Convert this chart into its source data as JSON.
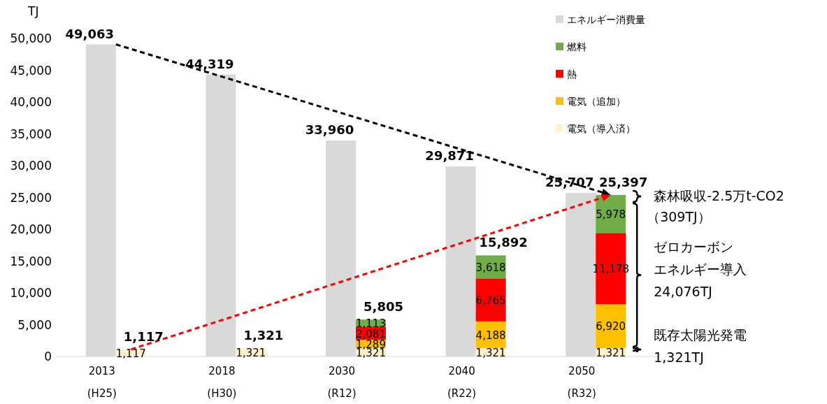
{
  "chart_data": [
    {
      "type": "bar",
      "ylabel": "TJ",
      "categories": [
        "2013\n(H25)",
        "2018\n(H30)",
        "2030\n(R12)",
        "2040\n(R22)",
        "2050\n(R32)"
      ],
      "series": [
        {
          "name": "エネルギー消費量",
          "color": "#d9d9d9",
          "values": [
            49063,
            44319,
            33960,
            29871,
            25707
          ],
          "value_labels": [
            "49,063",
            "44,319",
            "33,960",
            "29,871",
            "25,707"
          ]
        }
      ],
      "ylim": [
        0,
        50000
      ],
      "yticks": [
        {
          "value": 0,
          "label": "0"
        },
        {
          "value": 5000,
          "label": "5,000"
        },
        {
          "value": 10000,
          "label": "10,000"
        },
        {
          "value": 15000,
          "label": "15,000"
        },
        {
          "value": 20000,
          "label": "20,000"
        },
        {
          "value": 25000,
          "label": "25,000"
        },
        {
          "value": 30000,
          "label": "30,000"
        },
        {
          "value": 35000,
          "label": "35,000"
        },
        {
          "value": 40000,
          "label": "40,000"
        },
        {
          "value": 45000,
          "label": "45,000"
        },
        {
          "value": 50000,
          "label": "50,000"
        }
      ],
      "legend": "top right"
    },
    {
      "type": "bar",
      "categories": [
        "2013\n(H25)",
        "2018\n(H30)",
        "2030\n(R12)",
        "2040\n(R22)",
        "2050\n(R32)"
      ],
      "series": [
        {
          "name": "電気（導入済）",
          "color": "#fff2cc",
          "values": [
            1117,
            1321,
            1321,
            1321,
            1321
          ],
          "value_labels": [
            "1,117",
            "1,321",
            "1,321",
            "1,321",
            "1,321"
          ]
        },
        {
          "name": "電気（追加）",
          "color": "#ffc000",
          "values": [
            null,
            null,
            1289,
            4188,
            6920
          ],
          "value_labels": [
            null,
            null,
            "1,289",
            "4,188",
            "6,920"
          ]
        },
        {
          "name": "熱",
          "color": "#ff0000",
          "values": [
            null,
            null,
            2081,
            6765,
            11178
          ],
          "value_labels": [
            null,
            null,
            "2,081",
            "6,765",
            "11,178"
          ]
        },
        {
          "name": "燃料",
          "color": "#70ad47",
          "values": [
            null,
            null,
            1113,
            3618,
            5978
          ],
          "value_labels": [
            null,
            null,
            "1,113",
            "3,618",
            "5,978"
          ]
        }
      ],
      "stacked": true,
      "totals": [
        "1,117",
        "1,321",
        "5,805",
        "15,892",
        "25,397"
      ],
      "ylim": [
        0,
        50000
      ],
      "tick_labels": false,
      "legend": "top right",
      "annotations": [
        "森林吸収-2.5万t-CO2",
        "（309TJ）",
        "ゼロカーボン",
        "エネルギー導入",
        "24,076TJ",
        "既存太陽光発電",
        "1,321TJ"
      ]
    }
  ]
}
